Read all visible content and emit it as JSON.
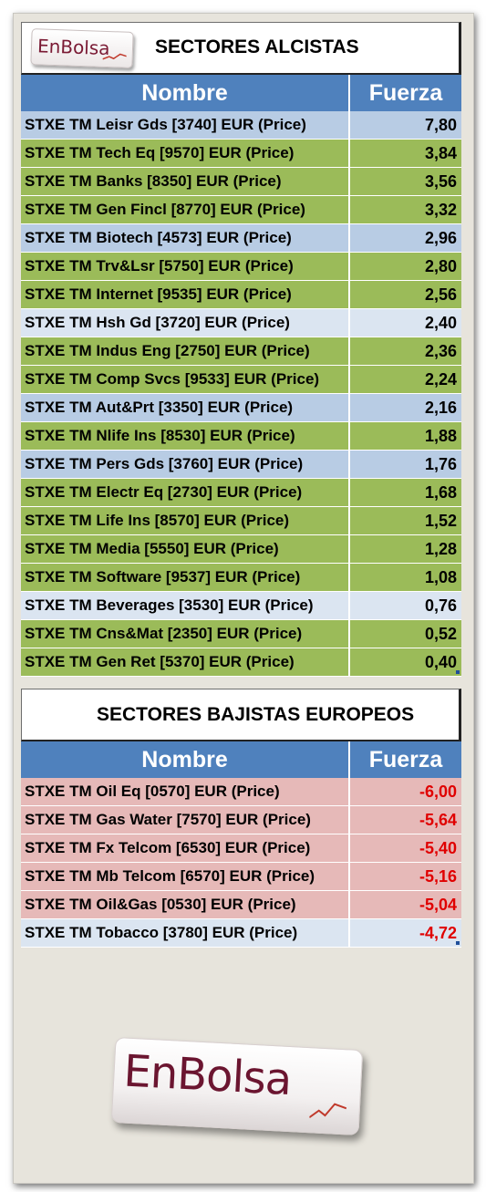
{
  "brand": {
    "logo_text": "EnBolsa"
  },
  "up_table": {
    "title": "SECTORES ALCISTAS",
    "col_name": "Nombre",
    "col_force": "Fuerza",
    "rows": [
      {
        "name": "STXE TM Leisr Gds [3740] EUR (Price)",
        "value": "7,80",
        "style": "blue"
      },
      {
        "name": "STXE TM Tech Eq [9570] EUR (Price)",
        "value": "3,84",
        "style": "green"
      },
      {
        "name": "STXE TM Banks [8350] EUR (Price)",
        "value": "3,56",
        "style": "green"
      },
      {
        "name": "STXE TM Gen Fincl [8770] EUR (Price)",
        "value": "3,32",
        "style": "green"
      },
      {
        "name": "STXE TM Biotech [4573] EUR (Price)",
        "value": "2,96",
        "style": "blue"
      },
      {
        "name": "STXE TM Trv&Lsr [5750] EUR (Price)",
        "value": "2,80",
        "style": "green"
      },
      {
        "name": "STXE TM Internet [9535] EUR (Price)",
        "value": "2,56",
        "style": "green"
      },
      {
        "name": "STXE TM Hsh Gd [3720] EUR (Price)",
        "value": "2,40",
        "style": "lightblue"
      },
      {
        "name": "STXE TM Indus Eng [2750] EUR (Price)",
        "value": "2,36",
        "style": "green"
      },
      {
        "name": "STXE TM Comp Svcs [9533] EUR (Price)",
        "value": "2,24",
        "style": "green"
      },
      {
        "name": "STXE TM Aut&Prt [3350] EUR (Price)",
        "value": "2,16",
        "style": "blue"
      },
      {
        "name": "STXE TM Nlife Ins [8530] EUR (Price)",
        "value": "1,88",
        "style": "green"
      },
      {
        "name": "STXE TM Pers Gds [3760] EUR (Price)",
        "value": "1,76",
        "style": "blue"
      },
      {
        "name": "STXE TM Electr Eq [2730] EUR (Price)",
        "value": "1,68",
        "style": "green"
      },
      {
        "name": "STXE TM Life Ins [8570] EUR (Price)",
        "value": "1,52",
        "style": "green"
      },
      {
        "name": "STXE TM Media [5550] EUR (Price)",
        "value": "1,28",
        "style": "green"
      },
      {
        "name": "STXE TM Software [9537] EUR (Price)",
        "value": "1,08",
        "style": "green"
      },
      {
        "name": "STXE TM Beverages [3530] EUR (Price)",
        "value": "0,76",
        "style": "lightblue"
      },
      {
        "name": "STXE TM Cns&Mat [2350] EUR (Price)",
        "value": "0,52",
        "style": "green"
      },
      {
        "name": "STXE TM Gen Ret [5370] EUR (Price)",
        "value": "0,40",
        "style": "green"
      }
    ]
  },
  "down_table": {
    "title": "SECTORES BAJISTAS EUROPEOS",
    "col_name": "Nombre",
    "col_force": "Fuerza",
    "rows": [
      {
        "name": "STXE TM Oil Eq [0570] EUR (Price)",
        "value": "-6,00",
        "style": "pink"
      },
      {
        "name": "STXE TM Gas Water [7570] EUR (Price)",
        "value": "-5,64",
        "style": "pink"
      },
      {
        "name": "STXE TM Fx Telcom [6530] EUR (Price)",
        "value": "-5,40",
        "style": "pink"
      },
      {
        "name": "STXE TM Mb Telcom [6570] EUR (Price)",
        "value": "-5,16",
        "style": "pink"
      },
      {
        "name": "STXE TM Oil&Gas [0530] EUR (Price)",
        "value": "-5,04",
        "style": "pink"
      },
      {
        "name": "STXE TM Tobacco [3780] EUR (Price)",
        "value": "-4,72",
        "style": "lightblue"
      }
    ]
  },
  "colors": {
    "header_blue": "#4f81bd",
    "row_green": "#9bbb59",
    "row_blue": "#b8cce4",
    "row_lightblue": "#dbe5f1",
    "row_pink": "#e6b9b8",
    "negative_red": "#e00000",
    "logo_maroon": "#6b1530"
  }
}
